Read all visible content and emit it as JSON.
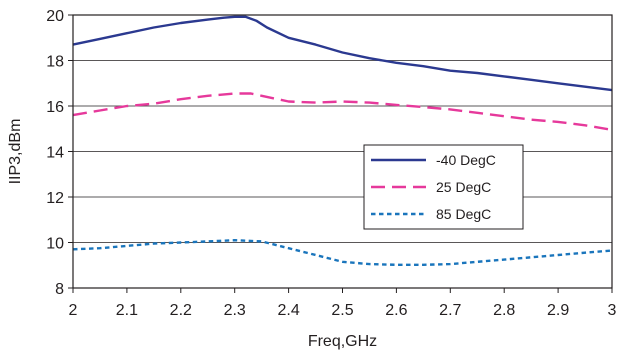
{
  "chart_data": {
    "type": "line",
    "xlabel": "Freq,GHz",
    "ylabel": "IIP3,dBm",
    "xlim": [
      2,
      3
    ],
    "ylim": [
      8,
      20
    ],
    "x_ticks": [
      2,
      2.1,
      2.2,
      2.3,
      2.4,
      2.5,
      2.6,
      2.7,
      2.8,
      2.9,
      3
    ],
    "x_tick_labels": [
      "2",
      "2.1",
      "2.2",
      "2.3",
      "2.4",
      "2.5",
      "2.6",
      "2.7",
      "2.8",
      "2.9",
      "3"
    ],
    "y_ticks": [
      8,
      10,
      12,
      14,
      16,
      18,
      20
    ],
    "y_tick_labels": [
      "8",
      "10",
      "12",
      "14",
      "16",
      "18",
      "20"
    ],
    "grid": "horizontal",
    "legend_position": "center-right",
    "series": [
      {
        "name": "-40 DegC",
        "color": "#2b3990",
        "dash": "solid",
        "x": [
          2.0,
          2.05,
          2.1,
          2.15,
          2.2,
          2.25,
          2.28,
          2.3,
          2.32,
          2.34,
          2.36,
          2.4,
          2.45,
          2.5,
          2.55,
          2.6,
          2.65,
          2.7,
          2.75,
          2.8,
          2.85,
          2.9,
          2.95,
          3.0
        ],
        "y": [
          18.7,
          18.95,
          19.2,
          19.45,
          19.65,
          19.8,
          19.88,
          19.92,
          19.92,
          19.75,
          19.45,
          19.0,
          18.7,
          18.35,
          18.1,
          17.9,
          17.75,
          17.55,
          17.45,
          17.3,
          17.15,
          17.0,
          16.85,
          16.7
        ]
      },
      {
        "name": "25 DegC",
        "color": "#e6399b",
        "dash": "dashed",
        "x": [
          2.0,
          2.05,
          2.1,
          2.15,
          2.2,
          2.25,
          2.3,
          2.33,
          2.35,
          2.4,
          2.45,
          2.5,
          2.55,
          2.6,
          2.65,
          2.7,
          2.75,
          2.8,
          2.85,
          2.9,
          2.95,
          3.0
        ],
        "y": [
          15.6,
          15.8,
          16.0,
          16.1,
          16.3,
          16.45,
          16.55,
          16.55,
          16.45,
          16.2,
          16.15,
          16.2,
          16.15,
          16.05,
          15.95,
          15.85,
          15.7,
          15.55,
          15.4,
          15.3,
          15.15,
          14.95
        ]
      },
      {
        "name": "85 DegC",
        "color": "#1a75bc",
        "dash": "dotted",
        "x": [
          2.0,
          2.05,
          2.1,
          2.15,
          2.2,
          2.25,
          2.3,
          2.35,
          2.4,
          2.45,
          2.5,
          2.55,
          2.6,
          2.65,
          2.7,
          2.75,
          2.8,
          2.85,
          2.9,
          2.95,
          3.0
        ],
        "y": [
          9.7,
          9.75,
          9.85,
          9.95,
          10.0,
          10.05,
          10.1,
          10.05,
          9.75,
          9.45,
          9.15,
          9.05,
          9.02,
          9.02,
          9.05,
          9.15,
          9.25,
          9.35,
          9.45,
          9.55,
          9.65
        ]
      }
    ]
  }
}
